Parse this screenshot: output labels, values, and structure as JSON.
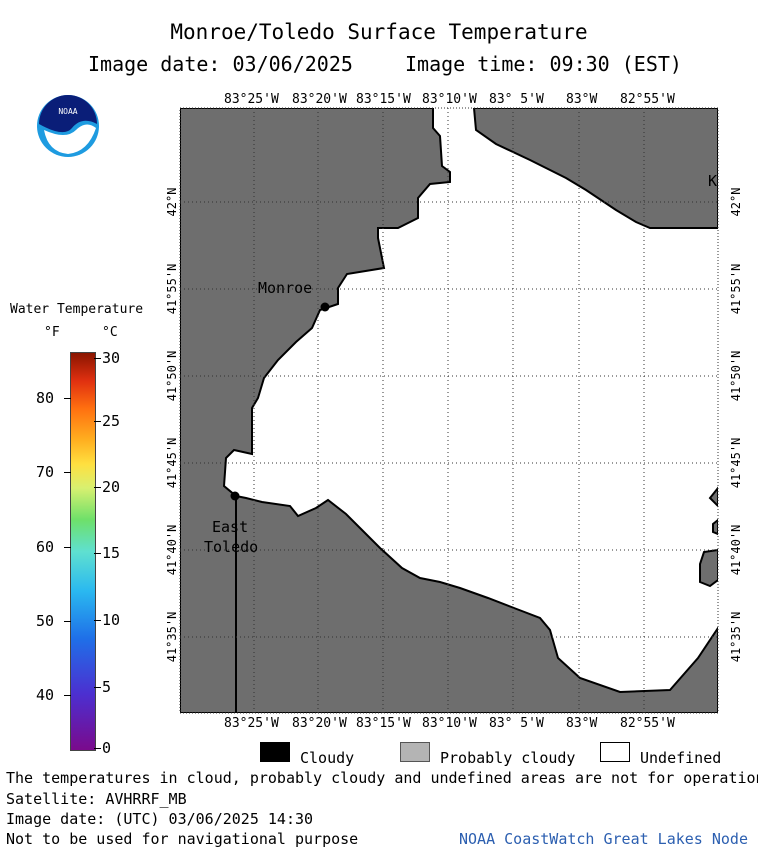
{
  "header": {
    "title": "Monroe/Toledo Surface Temperature",
    "image_date": "Image date: 03/06/2025",
    "image_time": "Image time: 09:30 (EST)"
  },
  "logo": {
    "text": "NOAA"
  },
  "colorbar": {
    "title": "Water Temperature",
    "unit_f": "°F",
    "unit_c": "°C",
    "f_ticks": [
      "80",
      "70",
      "60",
      "50",
      "40"
    ],
    "c_ticks": [
      "30",
      "25",
      "20",
      "15",
      "10",
      "5",
      "0"
    ],
    "colors": [
      "#7a0a8c",
      "#4c2fd0",
      "#1f6fe8",
      "#2ab8f0",
      "#5fe0d0",
      "#6ee06a",
      "#d8f070",
      "#ffe040",
      "#ffb020",
      "#ff7010",
      "#e03010",
      "#8a1500"
    ]
  },
  "map": {
    "lon_labels": [
      "83°25'W",
      "83°20'W",
      "83°15'W",
      "83°10'W",
      "83° 5'W",
      "83°W",
      "82°55'W"
    ],
    "lat_labels": [
      "42°N",
      "41°55'N",
      "41°50'N",
      "41°45'N",
      "41°40'N",
      "41°35'N"
    ],
    "places": {
      "monroe": "Monroe",
      "east": "East",
      "toledo": "Toledo",
      "edge_k": "K"
    },
    "land_color": "#6e6e6e",
    "water_color": "#ffffff"
  },
  "legend": {
    "cloudy": "Cloudy",
    "probably_cloudy": "Probably cloudy",
    "undefined": "Undefined"
  },
  "footer": {
    "line1": "The temperatures in cloud, probably cloudy and undefined areas are not for operational pur",
    "line2": "Satellite: AVHRRF_MB",
    "line3": "Image date: (UTC) 03/06/2025  14:30",
    "line4": "Not to be used for navigational purpose",
    "credit": "NOAA CoastWatch Great Lakes Node"
  }
}
